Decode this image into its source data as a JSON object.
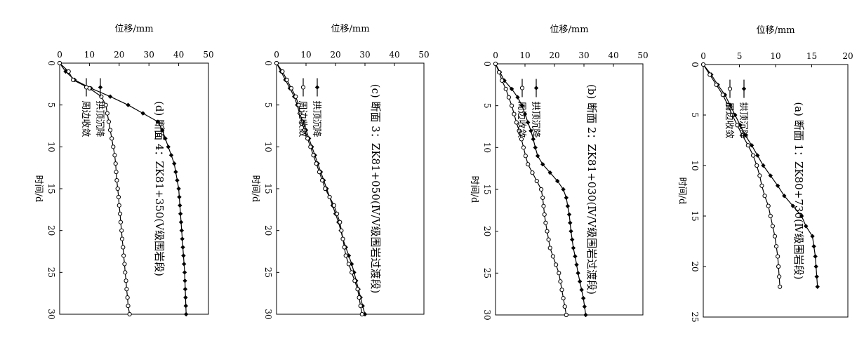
{
  "markers": {
    "subsidence": "filled-diamond",
    "convergence": "open-circle"
  },
  "chart_data": [
    {
      "type": "line",
      "caption": "(a) 断面 1：ZK80+730(Ⅳ级围岩段)",
      "xlabel": "时间/d",
      "ylabel": "位移/mm",
      "xlim": [
        0,
        25
      ],
      "ylim": [
        0,
        20
      ],
      "xticks": [
        "0",
        "5",
        "10",
        "15",
        "20",
        "25"
      ],
      "yticks": [
        "0",
        "5",
        "10",
        "15",
        "20"
      ],
      "legend_position": "bottom-left",
      "series": [
        {
          "name": "拱顶沉降",
          "x": [
            0,
            1,
            2,
            3,
            4,
            5,
            6,
            7,
            8,
            9,
            10,
            11,
            12,
            13,
            14,
            15,
            16,
            17,
            18,
            19,
            20,
            21,
            22
          ],
          "y": [
            0,
            1.1,
            2.0,
            3.0,
            3.7,
            4.4,
            5.1,
            5.8,
            6.7,
            7.5,
            8.3,
            9.3,
            10.3,
            11.2,
            12.4,
            13.6,
            14.2,
            15.1,
            15.3,
            15.5,
            15.6,
            15.7,
            15.8
          ]
        },
        {
          "name": "周边收敛",
          "x": [
            0,
            1,
            2,
            3,
            4,
            5,
            6,
            7,
            8,
            9,
            10,
            11,
            12,
            13,
            14,
            15,
            16,
            17,
            18,
            19,
            20,
            21,
            22
          ],
          "y": [
            0,
            0.9,
            1.8,
            2.7,
            3.4,
            4.0,
            4.7,
            5.4,
            6.2,
            6.9,
            7.4,
            7.8,
            8.1,
            8.5,
            9.0,
            9.3,
            9.6,
            9.9,
            10.1,
            10.3,
            10.4,
            10.5,
            10.6
          ]
        }
      ]
    },
    {
      "type": "line",
      "caption": "(b) 断面 2：ZK81+030(Ⅳ/Ⅴ级围岩过渡段)",
      "xlabel": "时间/d",
      "ylabel": "位移/mm",
      "xlim": [
        0,
        30
      ],
      "ylim": [
        0,
        50
      ],
      "xticks": [
        "0",
        "5",
        "10",
        "15",
        "20",
        "25",
        "30"
      ],
      "yticks": [
        "0",
        "10",
        "20",
        "30",
        "40",
        "50"
      ],
      "legend_position": "bottom-left",
      "series": [
        {
          "name": "拱顶沉降",
          "x": [
            0,
            1,
            2,
            3,
            4,
            5,
            6,
            7,
            8,
            9,
            10,
            11,
            12,
            13,
            14,
            15,
            16,
            17,
            18,
            19,
            20,
            21,
            22,
            23,
            24,
            25,
            26,
            27,
            28,
            29,
            30
          ],
          "y": [
            0,
            1.5,
            3,
            5.5,
            7.5,
            9,
            10,
            11,
            12,
            12.8,
            13.5,
            14.3,
            16,
            18.5,
            21,
            23,
            24,
            24.5,
            25,
            25.3,
            25.6,
            26,
            26.4,
            27,
            27.5,
            28,
            28.6,
            29.2,
            29.8,
            30.2,
            30.6
          ]
        },
        {
          "name": "周边收敛",
          "x": [
            0,
            1,
            2,
            3,
            4,
            5,
            6,
            7,
            8,
            9,
            10,
            11,
            12,
            13,
            14,
            15,
            16,
            17,
            18,
            19,
            20,
            21,
            22,
            23,
            24,
            25,
            26,
            27,
            28,
            29,
            30
          ],
          "y": [
            0,
            1.2,
            2.2,
            3.5,
            4.5,
            5.5,
            6.3,
            7.1,
            8,
            8.8,
            9.5,
            10.2,
            11,
            12.5,
            14,
            15.5,
            16,
            16.3,
            16.6,
            17,
            17.5,
            18,
            18.5,
            19.5,
            20.5,
            21.5,
            22,
            22.5,
            23,
            23.5,
            24
          ]
        }
      ]
    },
    {
      "type": "line",
      "caption": "(c) 断面 3：ZK81+050(Ⅳ/Ⅴ级围岩过渡段)",
      "xlabel": "时间/d",
      "ylabel": "位移/mm",
      "xlim": [
        0,
        30
      ],
      "ylim": [
        0,
        50
      ],
      "xticks": [
        "0",
        "5",
        "10",
        "15",
        "20",
        "25",
        "30"
      ],
      "yticks": [
        "0",
        "10",
        "20",
        "30",
        "40",
        "50"
      ],
      "legend_position": "bottom-left",
      "series": [
        {
          "name": "拱顶沉降",
          "x": [
            0,
            1,
            2,
            3,
            4,
            5,
            6,
            7,
            8,
            9,
            10,
            11,
            12,
            13,
            14,
            15,
            16,
            17,
            18,
            19,
            20,
            21,
            22,
            23,
            24,
            25,
            26,
            27,
            28,
            29,
            30
          ],
          "y": [
            0,
            1.5,
            3,
            4.5,
            6,
            7,
            7.8,
            9,
            10,
            11,
            12,
            13,
            14,
            15,
            16,
            17,
            18,
            19,
            20,
            21,
            21.8,
            22.5,
            23.5,
            24.5,
            25.5,
            26.3,
            27,
            27.8,
            28.5,
            29.2,
            30
          ]
        },
        {
          "name": "周边收敛",
          "x": [
            0,
            1,
            2,
            3,
            4,
            5,
            6,
            7,
            8,
            9,
            10,
            11,
            12,
            13,
            14,
            15,
            16,
            17,
            18,
            19,
            20,
            21,
            22,
            23,
            24,
            25,
            26,
            27,
            28,
            29,
            30
          ],
          "y": [
            0,
            2,
            3.5,
            5,
            6.5,
            7.5,
            8,
            8.5,
            9.5,
            10.5,
            11.5,
            12.5,
            13.5,
            14.5,
            15.5,
            16.5,
            18,
            19.5,
            20.5,
            21.5,
            22,
            22.5,
            23,
            23.5,
            24.5,
            25.5,
            26.5,
            27.5,
            28,
            28.5,
            29
          ]
        }
      ]
    },
    {
      "type": "line",
      "caption": "(d) 断面 4：ZK81+350(Ⅴ级围岩段)",
      "xlabel": "时间/d",
      "ylabel": "位移/mm",
      "xlim": [
        0,
        30
      ],
      "ylim": [
        0,
        50
      ],
      "xticks": [
        "0",
        "5",
        "10",
        "15",
        "20",
        "25",
        "30"
      ],
      "yticks": [
        "0",
        "10",
        "20",
        "30",
        "40",
        "50"
      ],
      "legend_position": "bottom-left",
      "series": [
        {
          "name": "拱顶沉降",
          "x": [
            0,
            1,
            2,
            3,
            4,
            5,
            6,
            7,
            8,
            9,
            10,
            11,
            12,
            13,
            14,
            15,
            16,
            17,
            18,
            19,
            20,
            21,
            22,
            23,
            24,
            25,
            26,
            27,
            28,
            29,
            30
          ],
          "y": [
            0,
            2,
            5,
            10.5,
            17,
            23,
            28,
            33,
            34.5,
            35.5,
            36.5,
            37.5,
            38.5,
            39,
            39.5,
            40,
            40.2,
            40.4,
            40.6,
            40.8,
            41,
            41.2,
            41.4,
            41.6,
            41.8,
            42,
            42.1,
            42.2,
            42.3,
            42.4,
            42.5
          ]
        },
        {
          "name": "周边收敛",
          "x": [
            0,
            1,
            2,
            3,
            4,
            5,
            6,
            7,
            8,
            9,
            10,
            11,
            12,
            13,
            14,
            15,
            16,
            17,
            18,
            19,
            20,
            21,
            22,
            23,
            24,
            25,
            26,
            27,
            28,
            29,
            30
          ],
          "y": [
            0,
            3,
            4.5,
            10,
            14,
            15.5,
            16,
            16.5,
            17,
            17.5,
            18,
            18.5,
            18.8,
            19,
            19.2,
            19.5,
            19.8,
            20,
            20.3,
            20.5,
            20.8,
            21,
            21.3,
            21.5,
            21.8,
            22,
            22.3,
            22.5,
            22.8,
            23,
            23.5
          ]
        }
      ]
    }
  ]
}
